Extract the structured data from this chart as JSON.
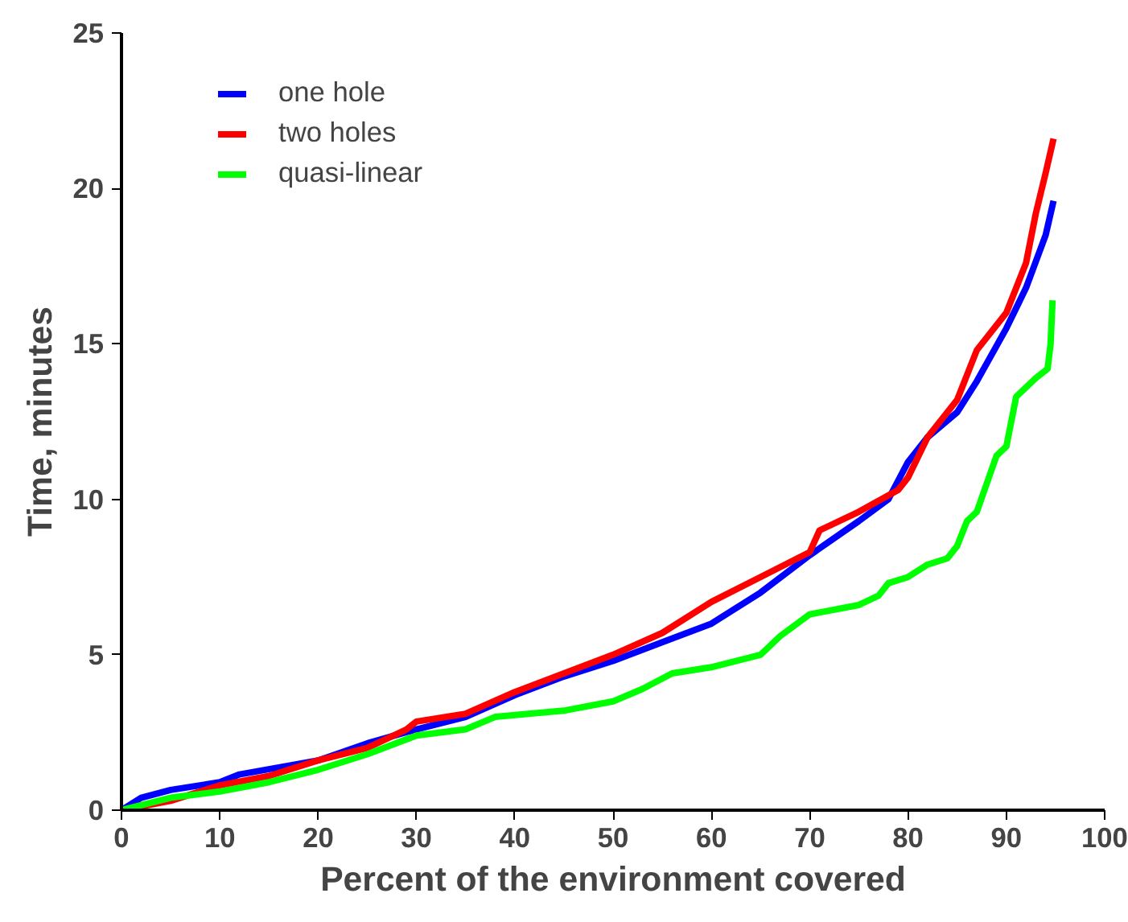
{
  "chart_data": {
    "type": "line",
    "xlabel": "Percent of the environment covered",
    "ylabel": "Time, minutes",
    "xlim": [
      0,
      100
    ],
    "ylim": [
      0,
      25
    ],
    "xticks": [
      0,
      10,
      20,
      30,
      40,
      50,
      60,
      70,
      80,
      90,
      100
    ],
    "yticks": [
      0,
      5,
      10,
      15,
      20,
      25
    ],
    "grid": false,
    "legend": "top left",
    "marker": "none",
    "line_style": "solid",
    "series": [
      {
        "name": "one hole",
        "color": "#0000ff",
        "x": [
          0,
          2,
          5,
          10,
          12,
          20,
          25,
          30,
          35,
          40,
          45,
          50,
          55,
          60,
          65,
          70,
          75,
          78,
          80,
          82,
          85,
          87,
          90,
          92,
          94,
          94.8
        ],
        "values": [
          0,
          0.4,
          0.65,
          0.9,
          1.15,
          1.6,
          2.15,
          2.6,
          3.0,
          3.7,
          4.3,
          4.8,
          5.4,
          6.0,
          7.0,
          8.2,
          9.3,
          10.0,
          11.2,
          12.0,
          12.8,
          13.8,
          15.5,
          16.8,
          18.5,
          19.6
        ]
      },
      {
        "name": "two holes",
        "color": "#ff0000",
        "x": [
          0,
          5,
          10,
          15,
          20,
          25,
          29,
          30,
          35,
          40,
          45,
          50,
          55,
          60,
          65,
          70,
          71,
          75,
          79,
          80,
          82,
          85,
          87,
          90,
          92,
          93,
          94,
          94.8
        ],
        "values": [
          0,
          0.3,
          0.8,
          1.1,
          1.6,
          2.0,
          2.6,
          2.85,
          3.1,
          3.8,
          4.4,
          5.0,
          5.7,
          6.7,
          7.5,
          8.3,
          9.0,
          9.6,
          10.3,
          10.7,
          12.0,
          13.2,
          14.8,
          16.0,
          17.6,
          19.2,
          20.5,
          21.6
        ]
      },
      {
        "name": "quasi-linear",
        "color": "#00ff00",
        "x": [
          0,
          5,
          10,
          15,
          20,
          25,
          30,
          35,
          38,
          45,
          50,
          53,
          56,
          60,
          65,
          67,
          70,
          75,
          77,
          78,
          80,
          82,
          84,
          85,
          86,
          87,
          88,
          89,
          90,
          91,
          93,
          94.2,
          94.5,
          94.7
        ],
        "values": [
          0,
          0.4,
          0.6,
          0.9,
          1.3,
          1.8,
          2.4,
          2.6,
          3.0,
          3.2,
          3.5,
          3.9,
          4.4,
          4.6,
          5.0,
          5.6,
          6.3,
          6.6,
          6.9,
          7.3,
          7.5,
          7.9,
          8.1,
          8.5,
          9.3,
          9.6,
          10.5,
          11.4,
          11.7,
          13.3,
          13.9,
          14.2,
          15.0,
          16.4
        ]
      }
    ]
  }
}
